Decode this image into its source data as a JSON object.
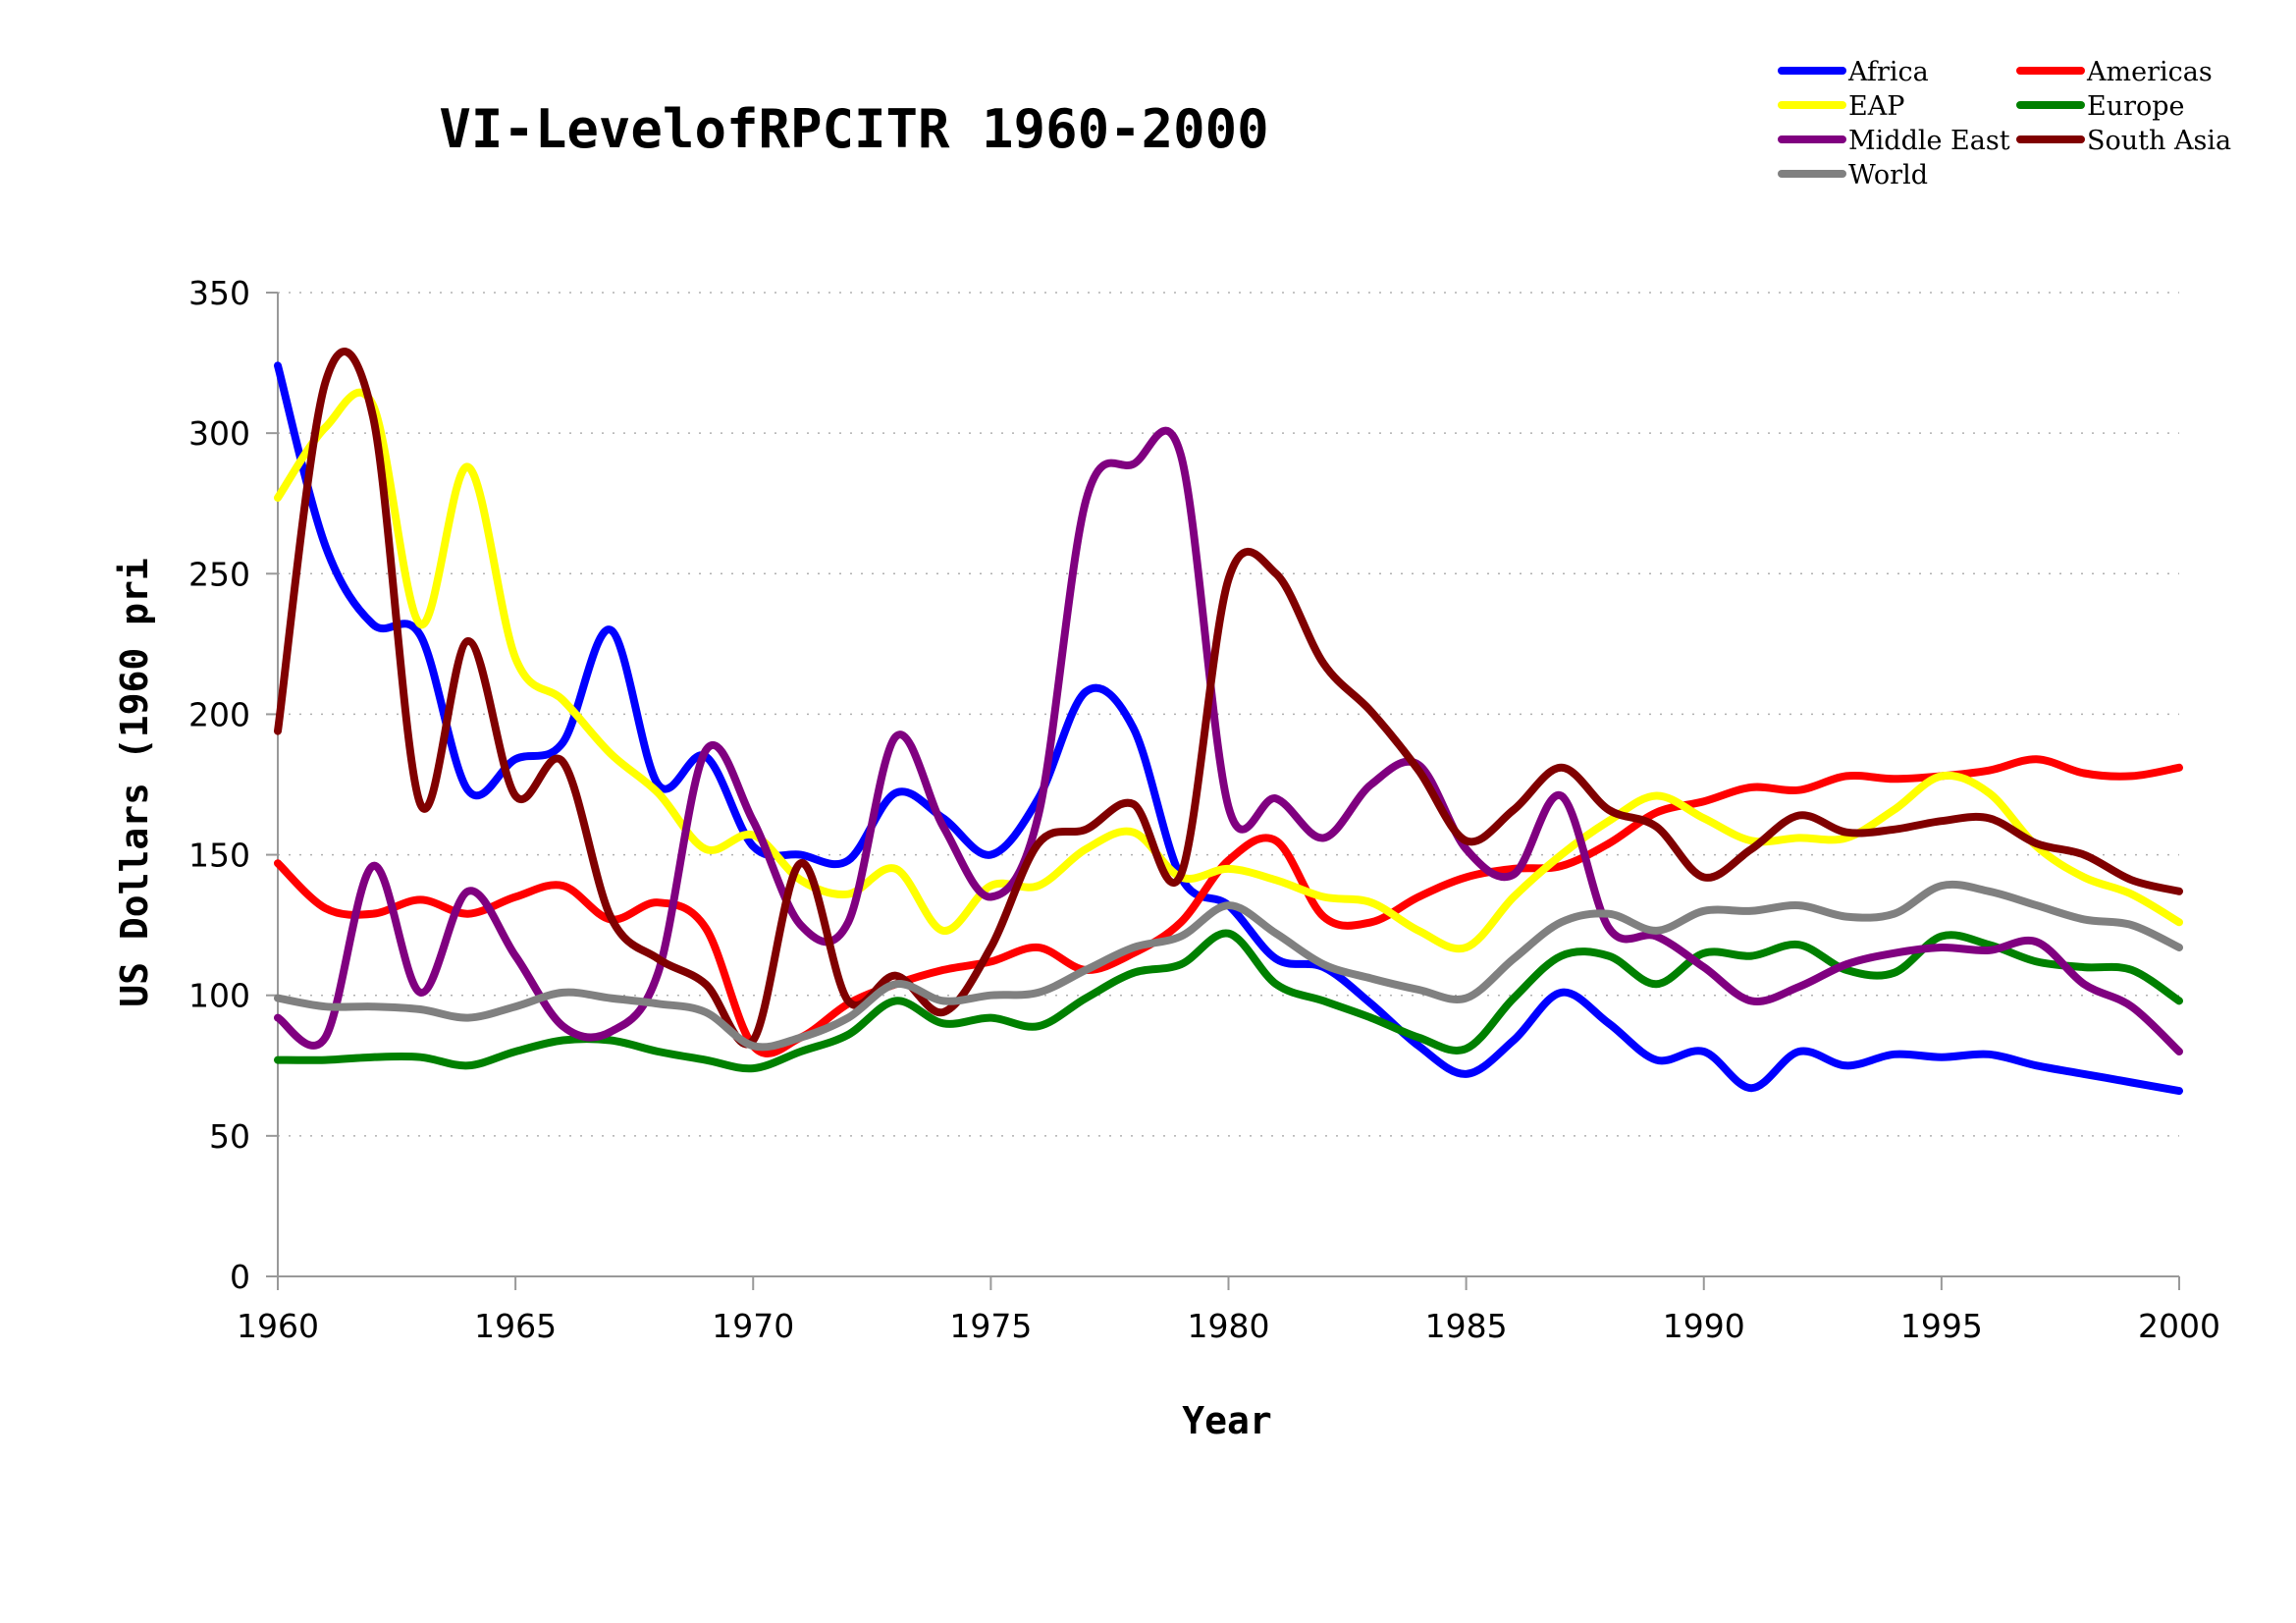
{
  "chart_data": {
    "type": "line",
    "title": "VI-LevelofRPCITR 1960-2000",
    "xlabel": "Year",
    "ylabel": "US Dollars (1960 pri",
    "xlim": [
      1960,
      2000
    ],
    "ylim": [
      0,
      350
    ],
    "x_ticks": [
      1960,
      1965,
      1970,
      1975,
      1980,
      1985,
      1990,
      1995,
      2000
    ],
    "y_ticks": [
      0,
      50,
      100,
      150,
      200,
      250,
      300,
      350
    ],
    "grid": "horizontal dotted",
    "legend_position": "top-right",
    "x": [
      1960,
      1961,
      1962,
      1963,
      1964,
      1965,
      1966,
      1967,
      1968,
      1969,
      1970,
      1971,
      1972,
      1973,
      1974,
      1975,
      1976,
      1977,
      1978,
      1979,
      1980,
      1981,
      1982,
      1983,
      1984,
      1985,
      1986,
      1987,
      1988,
      1989,
      1990,
      1991,
      1992,
      1993,
      1994,
      1995,
      1996,
      1997,
      1998,
      1999,
      2000
    ],
    "series": [
      {
        "name": "Africa",
        "color": "#0000ff",
        "values": [
          324,
          260,
          232,
          228,
          173,
          184,
          190,
          230,
          175,
          185,
          153,
          150,
          148,
          172,
          163,
          150,
          170,
          208,
          195,
          142,
          132,
          113,
          110,
          97,
          82,
          72,
          84,
          101,
          90,
          77,
          80,
          67,
          80,
          75,
          79,
          78,
          79,
          75,
          72,
          69,
          66
        ]
      },
      {
        "name": "Americas",
        "color": "#ff0000",
        "values": [
          147,
          131,
          129,
          134,
          129,
          135,
          139,
          127,
          133,
          124,
          82,
          85,
          97,
          104,
          109,
          112,
          117,
          109,
          115,
          126,
          148,
          155,
          128,
          126,
          135,
          142,
          145,
          146,
          154,
          165,
          169,
          174,
          173,
          178,
          177,
          178,
          180,
          184,
          179,
          178,
          181
        ]
      },
      {
        "name": "EAP",
        "color": "#ffff00",
        "values": [
          277,
          302,
          310,
          232,
          288,
          220,
          205,
          186,
          172,
          152,
          157,
          141,
          136,
          145,
          123,
          139,
          139,
          152,
          158,
          142,
          145,
          141,
          135,
          133,
          123,
          117,
          135,
          150,
          162,
          171,
          163,
          155,
          156,
          156,
          166,
          178,
          172,
          153,
          142,
          136,
          126
        ]
      },
      {
        "name": "Europe",
        "color": "#008000",
        "values": [
          77,
          77,
          78,
          78,
          75,
          80,
          84,
          84,
          80,
          77,
          74,
          80,
          86,
          98,
          90,
          92,
          89,
          99,
          108,
          111,
          122,
          104,
          98,
          92,
          85,
          81,
          99,
          114,
          114,
          104,
          115,
          114,
          118,
          109,
          108,
          121,
          118,
          112,
          110,
          109,
          98
        ]
      },
      {
        "name": "Middle East",
        "color": "#800080",
        "values": [
          92,
          85,
          146,
          101,
          137,
          114,
          89,
          87,
          108,
          187,
          162,
          125,
          126,
          192,
          160,
          135,
          164,
          276,
          289,
          292,
          167,
          170,
          156,
          175,
          182,
          152,
          143,
          171,
          124,
          121,
          110,
          98,
          103,
          111,
          115,
          117,
          116,
          119,
          104,
          96,
          80
        ]
      },
      {
        "name": "South Asia",
        "color": "#800000",
        "values": [
          194,
          318,
          306,
          168,
          226,
          171,
          183,
          128,
          113,
          104,
          84,
          147,
          98,
          107,
          94,
          117,
          154,
          159,
          168,
          143,
          248,
          250,
          218,
          201,
          180,
          155,
          166,
          181,
          166,
          160,
          142,
          152,
          164,
          158,
          159,
          162,
          163,
          154,
          150,
          141,
          137
        ]
      },
      {
        "name": "World",
        "color": "#808080",
        "values": [
          99,
          96,
          96,
          95,
          92,
          96,
          101,
          99,
          97,
          94,
          82,
          85,
          92,
          104,
          98,
          100,
          101,
          109,
          117,
          121,
          132,
          122,
          111,
          106,
          102,
          99,
          113,
          126,
          129,
          123,
          130,
          130,
          132,
          128,
          129,
          139,
          137,
          132,
          127,
          125,
          117
        ]
      }
    ]
  }
}
